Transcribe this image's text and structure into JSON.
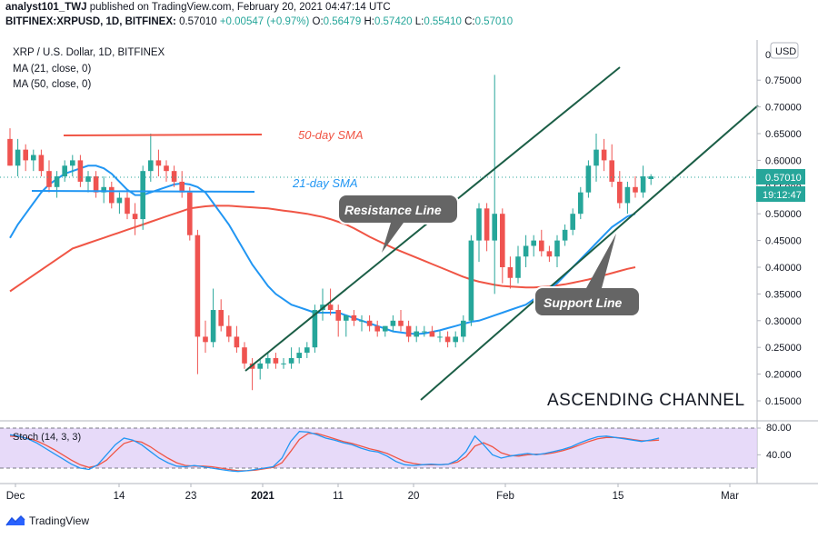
{
  "header": {
    "publisher": "analyst101_TWJ",
    "published_text": "published on TradingView.com, February 20, 2021 04:47:14 UTC",
    "symbol": "BITFINEX:XRPUSD, 1D, BITFINEX:",
    "change": "+0.00547 (+0.97%)",
    "o_label": "O:",
    "o_value": "0.56479",
    "h_label": "H:",
    "h_value": "0.57420",
    "l_label": "L:",
    "l_value": "0.55410",
    "c_label": "C:",
    "c_value": "0.57010",
    "top_price": "0.57010"
  },
  "legend": {
    "title": "XRP / U.S. Dollar, 1D, BITFINEX",
    "ma21": "MA (21, close, 0)",
    "ma50": "MA (50, close, 0)"
  },
  "currency_button": "USD",
  "price_tag": {
    "price": "0.57010",
    "countdown": "19:12:47"
  },
  "annotations": {
    "sma50": "50-day SMA",
    "sma21": "21-day SMA",
    "resistance": "Resistance Line",
    "support": "Support Line",
    "channel": "ASCENDING CHANNEL"
  },
  "stoch": {
    "label": "Stoch (14, 3, 3)",
    "levels": [
      "80.00",
      "40.00"
    ]
  },
  "footer": {
    "brand": "TradingView"
  },
  "colors": {
    "up": "#26a69a",
    "down": "#ef5350",
    "ma21": "#2196f3",
    "ma50": "#f05545",
    "channel": "#1b5e46",
    "stoch_k": "#2196f3",
    "stoch_d": "#f05545",
    "stoch_bg": "#e1d1f7"
  },
  "chart_data": {
    "type": "candlestick",
    "x_ticks": [
      "Dec",
      "14",
      "23",
      "2021",
      "11",
      "20",
      "Feb",
      "15",
      "Mar"
    ],
    "y_ticks": [
      "0.15000",
      "0.20000",
      "0.25000",
      "0.30000",
      "0.35000",
      "0.40000",
      "0.45000",
      "0.50000",
      "0.55000",
      "0.60000",
      "0.65000",
      "0.70000",
      "0.75000"
    ],
    "ylim": [
      0.12,
      0.8
    ],
    "candles": [
      {
        "o": 0.64,
        "h": 0.66,
        "l": 0.59,
        "c": 0.59
      },
      {
        "o": 0.59,
        "h": 0.64,
        "l": 0.57,
        "c": 0.62
      },
      {
        "o": 0.62,
        "h": 0.63,
        "l": 0.58,
        "c": 0.6
      },
      {
        "o": 0.6,
        "h": 0.62,
        "l": 0.58,
        "c": 0.61
      },
      {
        "o": 0.61,
        "h": 0.62,
        "l": 0.57,
        "c": 0.58
      },
      {
        "o": 0.58,
        "h": 0.6,
        "l": 0.54,
        "c": 0.55
      },
      {
        "o": 0.55,
        "h": 0.58,
        "l": 0.53,
        "c": 0.57
      },
      {
        "o": 0.57,
        "h": 0.6,
        "l": 0.56,
        "c": 0.59
      },
      {
        "o": 0.59,
        "h": 0.61,
        "l": 0.57,
        "c": 0.6
      },
      {
        "o": 0.6,
        "h": 0.61,
        "l": 0.55,
        "c": 0.56
      },
      {
        "o": 0.56,
        "h": 0.58,
        "l": 0.54,
        "c": 0.57
      },
      {
        "o": 0.57,
        "h": 0.58,
        "l": 0.53,
        "c": 0.54
      },
      {
        "o": 0.54,
        "h": 0.57,
        "l": 0.52,
        "c": 0.55
      },
      {
        "o": 0.55,
        "h": 0.56,
        "l": 0.51,
        "c": 0.52
      },
      {
        "o": 0.52,
        "h": 0.54,
        "l": 0.5,
        "c": 0.53
      },
      {
        "o": 0.53,
        "h": 0.54,
        "l": 0.49,
        "c": 0.5
      },
      {
        "o": 0.5,
        "h": 0.52,
        "l": 0.46,
        "c": 0.49
      },
      {
        "o": 0.49,
        "h": 0.59,
        "l": 0.47,
        "c": 0.58
      },
      {
        "o": 0.58,
        "h": 0.65,
        "l": 0.56,
        "c": 0.6
      },
      {
        "o": 0.6,
        "h": 0.62,
        "l": 0.57,
        "c": 0.59
      },
      {
        "o": 0.59,
        "h": 0.6,
        "l": 0.56,
        "c": 0.58
      },
      {
        "o": 0.58,
        "h": 0.59,
        "l": 0.55,
        "c": 0.56
      },
      {
        "o": 0.56,
        "h": 0.58,
        "l": 0.53,
        "c": 0.54
      },
      {
        "o": 0.54,
        "h": 0.55,
        "l": 0.45,
        "c": 0.46
      },
      {
        "o": 0.46,
        "h": 0.47,
        "l": 0.2,
        "c": 0.27
      },
      {
        "o": 0.27,
        "h": 0.3,
        "l": 0.24,
        "c": 0.26
      },
      {
        "o": 0.26,
        "h": 0.36,
        "l": 0.25,
        "c": 0.32
      },
      {
        "o": 0.32,
        "h": 0.34,
        "l": 0.28,
        "c": 0.29
      },
      {
        "o": 0.29,
        "h": 0.31,
        "l": 0.26,
        "c": 0.27
      },
      {
        "o": 0.27,
        "h": 0.29,
        "l": 0.24,
        "c": 0.25
      },
      {
        "o": 0.25,
        "h": 0.26,
        "l": 0.21,
        "c": 0.22
      },
      {
        "o": 0.22,
        "h": 0.23,
        "l": 0.17,
        "c": 0.21
      },
      {
        "o": 0.21,
        "h": 0.23,
        "l": 0.19,
        "c": 0.22
      },
      {
        "o": 0.22,
        "h": 0.24,
        "l": 0.21,
        "c": 0.23
      },
      {
        "o": 0.23,
        "h": 0.24,
        "l": 0.21,
        "c": 0.22
      },
      {
        "o": 0.22,
        "h": 0.23,
        "l": 0.21,
        "c": 0.22
      },
      {
        "o": 0.22,
        "h": 0.25,
        "l": 0.21,
        "c": 0.23
      },
      {
        "o": 0.23,
        "h": 0.25,
        "l": 0.22,
        "c": 0.24
      },
      {
        "o": 0.24,
        "h": 0.26,
        "l": 0.23,
        "c": 0.25
      },
      {
        "o": 0.25,
        "h": 0.33,
        "l": 0.24,
        "c": 0.32
      },
      {
        "o": 0.32,
        "h": 0.36,
        "l": 0.3,
        "c": 0.33
      },
      {
        "o": 0.33,
        "h": 0.36,
        "l": 0.31,
        "c": 0.32
      },
      {
        "o": 0.32,
        "h": 0.33,
        "l": 0.27,
        "c": 0.3
      },
      {
        "o": 0.3,
        "h": 0.31,
        "l": 0.27,
        "c": 0.31
      },
      {
        "o": 0.31,
        "h": 0.32,
        "l": 0.29,
        "c": 0.3
      },
      {
        "o": 0.3,
        "h": 0.31,
        "l": 0.28,
        "c": 0.3
      },
      {
        "o": 0.3,
        "h": 0.31,
        "l": 0.28,
        "c": 0.29
      },
      {
        "o": 0.29,
        "h": 0.3,
        "l": 0.27,
        "c": 0.28
      },
      {
        "o": 0.28,
        "h": 0.29,
        "l": 0.27,
        "c": 0.29
      },
      {
        "o": 0.29,
        "h": 0.31,
        "l": 0.28,
        "c": 0.3
      },
      {
        "o": 0.3,
        "h": 0.32,
        "l": 0.28,
        "c": 0.29
      },
      {
        "o": 0.29,
        "h": 0.3,
        "l": 0.26,
        "c": 0.27
      },
      {
        "o": 0.27,
        "h": 0.29,
        "l": 0.26,
        "c": 0.28
      },
      {
        "o": 0.28,
        "h": 0.29,
        "l": 0.27,
        "c": 0.28
      },
      {
        "o": 0.28,
        "h": 0.29,
        "l": 0.27,
        "c": 0.27
      },
      {
        "o": 0.27,
        "h": 0.28,
        "l": 0.26,
        "c": 0.27
      },
      {
        "o": 0.27,
        "h": 0.28,
        "l": 0.25,
        "c": 0.26
      },
      {
        "o": 0.26,
        "h": 0.28,
        "l": 0.25,
        "c": 0.27
      },
      {
        "o": 0.27,
        "h": 0.31,
        "l": 0.26,
        "c": 0.3
      },
      {
        "o": 0.3,
        "h": 0.46,
        "l": 0.29,
        "c": 0.45
      },
      {
        "o": 0.45,
        "h": 0.52,
        "l": 0.41,
        "c": 0.51
      },
      {
        "o": 0.51,
        "h": 0.52,
        "l": 0.43,
        "c": 0.45
      },
      {
        "o": 0.45,
        "h": 0.76,
        "l": 0.35,
        "c": 0.5
      },
      {
        "o": 0.5,
        "h": 0.51,
        "l": 0.37,
        "c": 0.4
      },
      {
        "o": 0.4,
        "h": 0.42,
        "l": 0.36,
        "c": 0.38
      },
      {
        "o": 0.38,
        "h": 0.44,
        "l": 0.37,
        "c": 0.42
      },
      {
        "o": 0.42,
        "h": 0.46,
        "l": 0.4,
        "c": 0.44
      },
      {
        "o": 0.44,
        "h": 0.46,
        "l": 0.42,
        "c": 0.45
      },
      {
        "o": 0.45,
        "h": 0.47,
        "l": 0.42,
        "c": 0.43
      },
      {
        "o": 0.43,
        "h": 0.44,
        "l": 0.41,
        "c": 0.42
      },
      {
        "o": 0.42,
        "h": 0.46,
        "l": 0.4,
        "c": 0.45
      },
      {
        "o": 0.45,
        "h": 0.48,
        "l": 0.44,
        "c": 0.47
      },
      {
        "o": 0.47,
        "h": 0.51,
        "l": 0.46,
        "c": 0.5
      },
      {
        "o": 0.5,
        "h": 0.55,
        "l": 0.49,
        "c": 0.54
      },
      {
        "o": 0.54,
        "h": 0.6,
        "l": 0.53,
        "c": 0.59
      },
      {
        "o": 0.59,
        "h": 0.65,
        "l": 0.56,
        "c": 0.62
      },
      {
        "o": 0.62,
        "h": 0.64,
        "l": 0.58,
        "c": 0.6
      },
      {
        "o": 0.6,
        "h": 0.63,
        "l": 0.55,
        "c": 0.56
      },
      {
        "o": 0.56,
        "h": 0.58,
        "l": 0.51,
        "c": 0.52
      },
      {
        "o": 0.52,
        "h": 0.56,
        "l": 0.5,
        "c": 0.55
      },
      {
        "o": 0.55,
        "h": 0.57,
        "l": 0.53,
        "c": 0.54
      },
      {
        "o": 0.54,
        "h": 0.59,
        "l": 0.53,
        "c": 0.57
      },
      {
        "o": 0.565,
        "h": 0.574,
        "l": 0.554,
        "c": 0.57
      }
    ],
    "ma21": [
      0.455,
      0.48,
      0.5,
      0.52,
      0.54,
      0.555,
      0.565,
      0.575,
      0.58,
      0.585,
      0.59,
      0.59,
      0.585,
      0.575,
      0.56,
      0.545,
      0.535,
      0.535,
      0.54,
      0.545,
      0.55,
      0.555,
      0.557,
      0.555,
      0.55,
      0.54,
      0.52,
      0.5,
      0.48,
      0.455,
      0.43,
      0.405,
      0.385,
      0.365,
      0.35,
      0.34,
      0.33,
      0.325,
      0.32,
      0.315,
      0.315,
      0.315,
      0.315,
      0.31,
      0.305,
      0.3,
      0.295,
      0.29,
      0.285,
      0.28,
      0.278,
      0.276,
      0.275,
      0.276,
      0.279,
      0.282,
      0.286,
      0.29,
      0.294,
      0.298,
      0.3,
      0.305,
      0.31,
      0.315,
      0.32,
      0.325,
      0.33,
      0.34,
      0.35,
      0.36,
      0.37,
      0.385,
      0.4,
      0.415,
      0.43,
      0.445,
      0.46,
      0.475,
      0.485,
      0.495,
      0.5
    ],
    "ma50": [
      0.355,
      0.365,
      0.375,
      0.385,
      0.395,
      0.405,
      0.415,
      0.425,
      0.435,
      0.44,
      0.445,
      0.45,
      0.455,
      0.46,
      0.465,
      0.47,
      0.475,
      0.48,
      0.485,
      0.49,
      0.495,
      0.5,
      0.505,
      0.51,
      0.512,
      0.514,
      0.515,
      0.515,
      0.515,
      0.514,
      0.513,
      0.512,
      0.511,
      0.51,
      0.508,
      0.506,
      0.504,
      0.502,
      0.5,
      0.497,
      0.494,
      0.49,
      0.485,
      0.48,
      0.473,
      0.465,
      0.457,
      0.45,
      0.443,
      0.436,
      0.43,
      0.424,
      0.418,
      0.412,
      0.406,
      0.4,
      0.394,
      0.388,
      0.382,
      0.377,
      0.373,
      0.37,
      0.367,
      0.365,
      0.364,
      0.363,
      0.362,
      0.362,
      0.363,
      0.364,
      0.366,
      0.368,
      0.371,
      0.374,
      0.377,
      0.381,
      0.385,
      0.389,
      0.393,
      0.397,
      0.4
    ],
    "stoch_k": [
      70,
      68,
      64,
      58,
      50,
      42,
      34,
      26,
      20,
      18,
      25,
      40,
      55,
      65,
      62,
      55,
      45,
      35,
      28,
      23,
      22,
      24,
      22,
      20,
      18,
      16,
      15,
      16,
      18,
      20,
      22,
      35,
      60,
      75,
      74,
      70,
      65,
      62,
      58,
      55,
      50,
      46,
      44,
      38,
      30,
      25,
      24,
      25,
      26,
      25,
      26,
      32,
      45,
      68,
      55,
      40,
      35,
      38,
      40,
      42,
      40,
      42,
      45,
      48,
      52,
      58,
      63,
      67,
      68,
      66,
      64,
      62,
      60,
      62,
      65
    ],
    "stoch_d": [
      68,
      67,
      65,
      61,
      55,
      48,
      40,
      32,
      25,
      21,
      24,
      32,
      45,
      57,
      61,
      59,
      52,
      43,
      35,
      28,
      24,
      23,
      23,
      22,
      20,
      18,
      16,
      16,
      17,
      19,
      21,
      28,
      45,
      63,
      72,
      72,
      68,
      64,
      60,
      57,
      53,
      49,
      46,
      42,
      36,
      30,
      27,
      25,
      25,
      25,
      26,
      29,
      37,
      53,
      58,
      52,
      43,
      39,
      38,
      40,
      41,
      41,
      43,
      46,
      50,
      55,
      60,
      64,
      66,
      66,
      65,
      63,
      61,
      61,
      62
    ]
  }
}
